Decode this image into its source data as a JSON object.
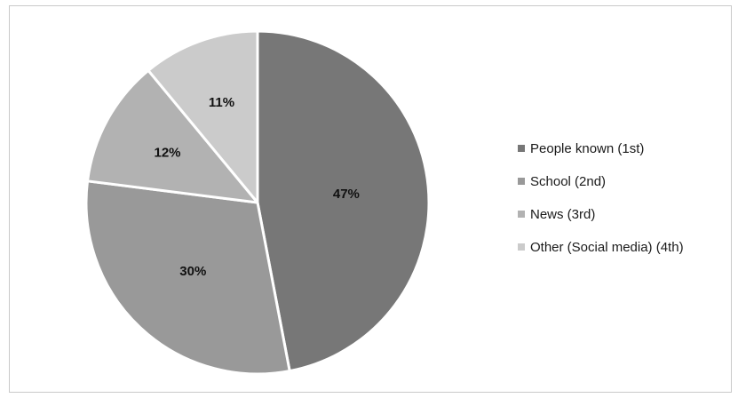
{
  "chart_data": {
    "type": "pie",
    "title": "",
    "legend_position": "right",
    "start_angle_deg": 0,
    "direction": "clockwise",
    "slices": [
      {
        "label": "People known (1st)",
        "value": 47,
        "value_label": "47%",
        "color": "#777777"
      },
      {
        "label": "School (2nd)",
        "value": 30,
        "value_label": "30%",
        "color": "#999999"
      },
      {
        "label": "News (3rd)",
        "value": 12,
        "value_label": "12%",
        "color": "#b2b2b2"
      },
      {
        "label": "Other (Social media) (4th)",
        "value": 11,
        "value_label": "11%",
        "color": "#cbcbcb"
      }
    ]
  }
}
